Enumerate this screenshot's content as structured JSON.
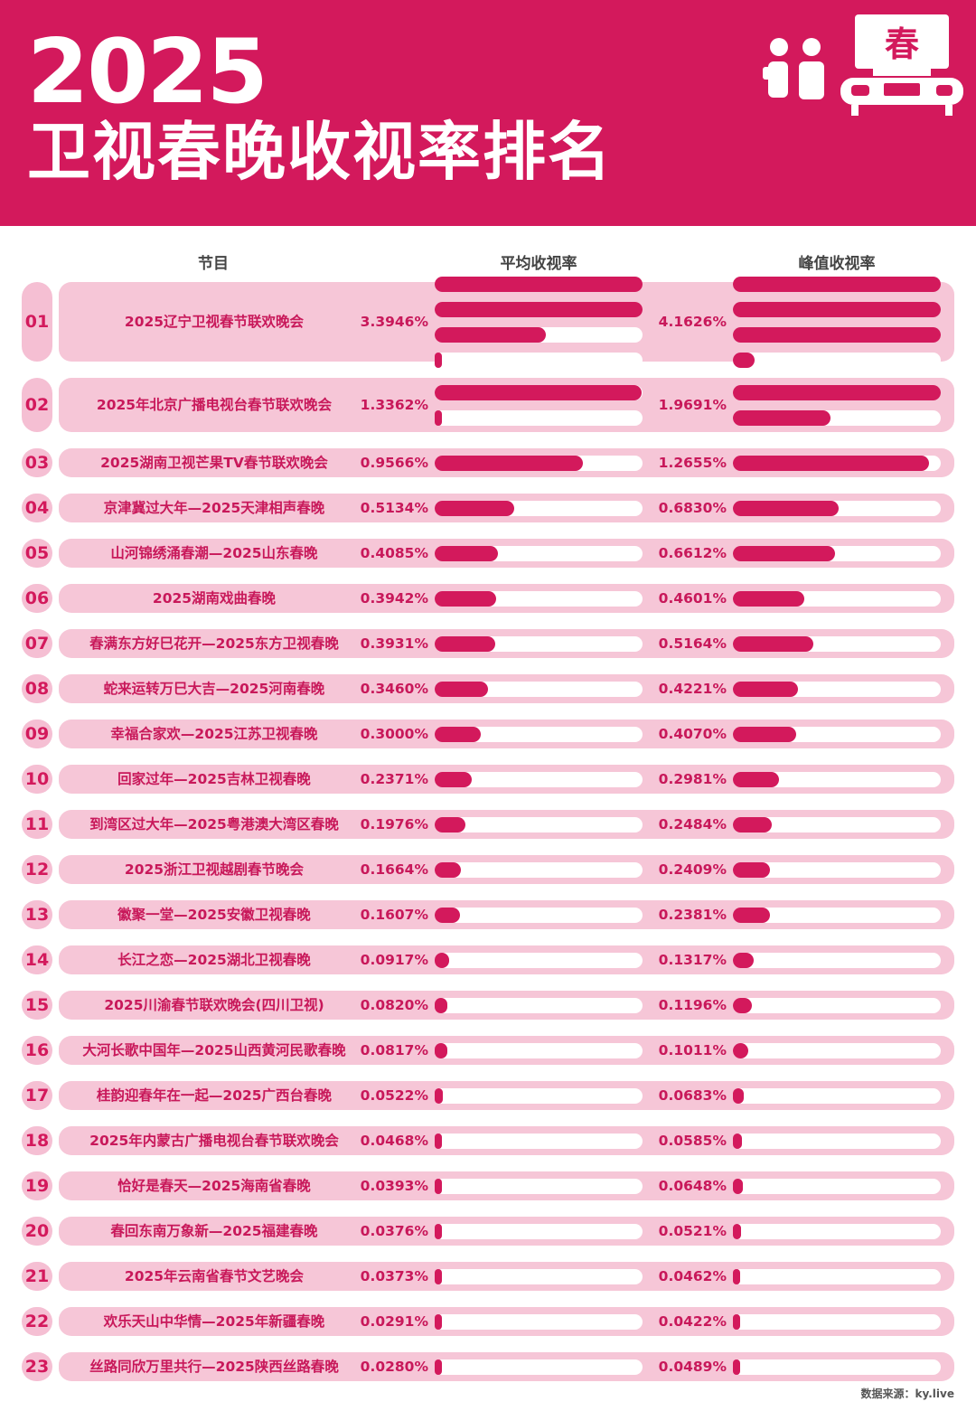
{
  "header": {
    "year": "2025",
    "title": "卫视春晚收视率排名",
    "logo_char": "春"
  },
  "columns": {
    "program": "节目",
    "avg": "平均收视率",
    "peak": "峰值收视率"
  },
  "colors": {
    "accent": "#d3195c",
    "row_bg": "#f6c6d7",
    "rank_bg": "#f5bfd3",
    "track": "#ffffff"
  },
  "chart_data": {
    "type": "bar",
    "title": "2025 卫视春晚收视率排名",
    "bar_scale_percent_per_full_track": 1.34,
    "series": [
      {
        "name": "平均收视率",
        "unit": "%"
      },
      {
        "name": "峰值收视率",
        "unit": "%"
      }
    ],
    "rows": [
      {
        "rank": "01",
        "name": "2025辽宁卫视春节联欢晚会",
        "avg": 3.3946,
        "avg_label": "3.3946%",
        "peak": 4.1626,
        "peak_label": "4.1626%"
      },
      {
        "rank": "02",
        "name": "2025年北京广播电视台春节联欢晚会",
        "avg": 1.3362,
        "avg_label": "1.3362%",
        "peak": 1.9691,
        "peak_label": "1.9691%"
      },
      {
        "rank": "03",
        "name": "2025湖南卫视芒果TV春节联欢晚会",
        "avg": 0.9566,
        "avg_label": "0.9566%",
        "peak": 1.2655,
        "peak_label": "1.2655%"
      },
      {
        "rank": "04",
        "name": "京津冀过大年—2025天津相声春晚",
        "avg": 0.5134,
        "avg_label": "0.5134%",
        "peak": 0.683,
        "peak_label": "0.6830%"
      },
      {
        "rank": "05",
        "name": "山河锦绣涌春潮—2025山东春晚",
        "avg": 0.4085,
        "avg_label": "0.4085%",
        "peak": 0.6612,
        "peak_label": "0.6612%"
      },
      {
        "rank": "06",
        "name": "2025湖南戏曲春晚",
        "avg": 0.3942,
        "avg_label": "0.3942%",
        "peak": 0.4601,
        "peak_label": "0.4601%"
      },
      {
        "rank": "07",
        "name": "春满东方好巳花开—2025东方卫视春晚",
        "avg": 0.3931,
        "avg_label": "0.3931%",
        "peak": 0.5164,
        "peak_label": "0.5164%"
      },
      {
        "rank": "08",
        "name": "蛇来运转万巳大吉—2025河南春晚",
        "avg": 0.346,
        "avg_label": "0.3460%",
        "peak": 0.4221,
        "peak_label": "0.4221%"
      },
      {
        "rank": "09",
        "name": "幸福合家欢—2025江苏卫视春晚",
        "avg": 0.3,
        "avg_label": "0.3000%",
        "peak": 0.407,
        "peak_label": "0.4070%"
      },
      {
        "rank": "10",
        "name": "回家过年—2025吉林卫视春晚",
        "avg": 0.2371,
        "avg_label": "0.2371%",
        "peak": 0.2981,
        "peak_label": "0.2981%"
      },
      {
        "rank": "11",
        "name": "到湾区过大年—2025粤港澳大湾区春晚",
        "avg": 0.1976,
        "avg_label": "0.1976%",
        "peak": 0.2484,
        "peak_label": "0.2484%"
      },
      {
        "rank": "12",
        "name": "2025浙江卫视越剧春节晚会",
        "avg": 0.1664,
        "avg_label": "0.1664%",
        "peak": 0.2409,
        "peak_label": "0.2409%"
      },
      {
        "rank": "13",
        "name": "徽聚一堂—2025安徽卫视春晚",
        "avg": 0.1607,
        "avg_label": "0.1607%",
        "peak": 0.2381,
        "peak_label": "0.2381%"
      },
      {
        "rank": "14",
        "name": "长江之恋—2025湖北卫视春晚",
        "avg": 0.0917,
        "avg_label": "0.0917%",
        "peak": 0.1317,
        "peak_label": "0.1317%"
      },
      {
        "rank": "15",
        "name": "2025川渝春节联欢晚会(四川卫视)",
        "avg": 0.082,
        "avg_label": "0.0820%",
        "peak": 0.1196,
        "peak_label": "0.1196%"
      },
      {
        "rank": "16",
        "name": "大河长歌中国年—2025山西黄河民歌春晚",
        "avg": 0.0817,
        "avg_label": "0.0817%",
        "peak": 0.1011,
        "peak_label": "0.1011%"
      },
      {
        "rank": "17",
        "name": "桂韵迎春年在一起—2025广西台春晚",
        "avg": 0.0522,
        "avg_label": "0.0522%",
        "peak": 0.0683,
        "peak_label": "0.0683%"
      },
      {
        "rank": "18",
        "name": "2025年内蒙古广播电视台春节联欢晚会",
        "avg": 0.0468,
        "avg_label": "0.0468%",
        "peak": 0.0585,
        "peak_label": "0.0585%"
      },
      {
        "rank": "19",
        "name": "恰好是春天—2025海南省春晚",
        "avg": 0.0393,
        "avg_label": "0.0393%",
        "peak": 0.0648,
        "peak_label": "0.0648%"
      },
      {
        "rank": "20",
        "name": "春回东南万象新—2025福建春晚",
        "avg": 0.0376,
        "avg_label": "0.0376%",
        "peak": 0.0521,
        "peak_label": "0.0521%"
      },
      {
        "rank": "21",
        "name": "2025年云南省春节文艺晚会",
        "avg": 0.0373,
        "avg_label": "0.0373%",
        "peak": 0.0462,
        "peak_label": "0.0462%"
      },
      {
        "rank": "22",
        "name": "欢乐天山中华情—2025年新疆春晚",
        "avg": 0.0291,
        "avg_label": "0.0291%",
        "peak": 0.0422,
        "peak_label": "0.0422%"
      },
      {
        "rank": "23",
        "name": "丝路同欣万里共行—2025陕西丝路春晚",
        "avg": 0.028,
        "avg_label": "0.0280%",
        "peak": 0.0489,
        "peak_label": "0.0489%"
      }
    ]
  },
  "footer": {
    "source": "数据来源：ky.live"
  }
}
